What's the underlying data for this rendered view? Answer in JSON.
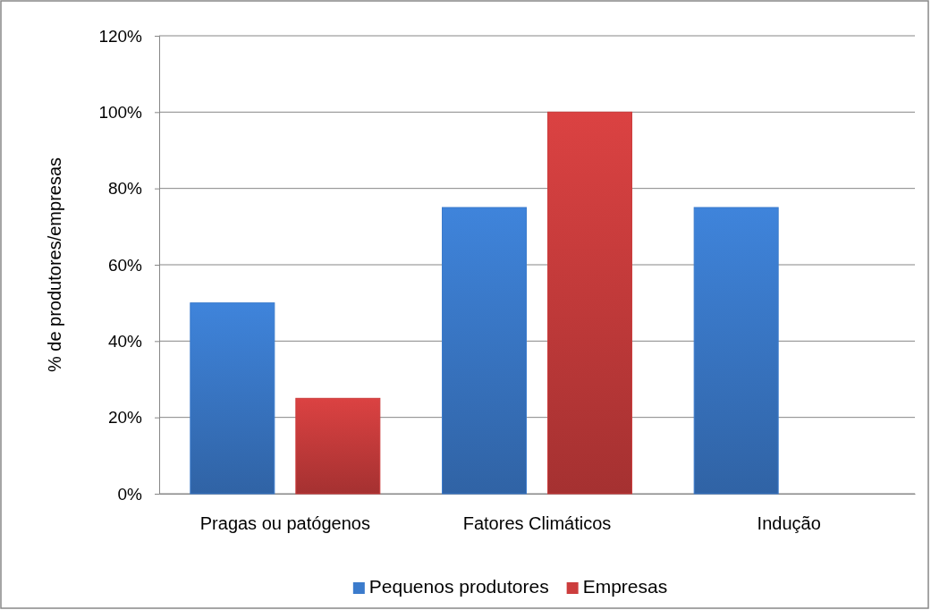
{
  "chart_data": {
    "type": "bar",
    "ylabel": "% de produtores/empresas",
    "categories": [
      "Pragas ou patógenos",
      "Fatores Climáticos",
      "Indução"
    ],
    "series": [
      {
        "name": "Pequenos produtores",
        "color": "#3b7bcc",
        "values": [
          50,
          75,
          75
        ]
      },
      {
        "name": "Empresas",
        "color": "#cc3d3d",
        "values": [
          25,
          100,
          0
        ]
      }
    ],
    "ylim": [
      0,
      120
    ],
    "yticks": [
      {
        "value": 0,
        "label": "0%"
      },
      {
        "value": 20,
        "label": "20%"
      },
      {
        "value": 40,
        "label": "40%"
      },
      {
        "value": 60,
        "label": "60%"
      },
      {
        "value": 80,
        "label": "80%"
      },
      {
        "value": 100,
        "label": "100%"
      },
      {
        "value": 120,
        "label": "120%"
      }
    ],
    "grid": "y",
    "legend": "bottom"
  }
}
